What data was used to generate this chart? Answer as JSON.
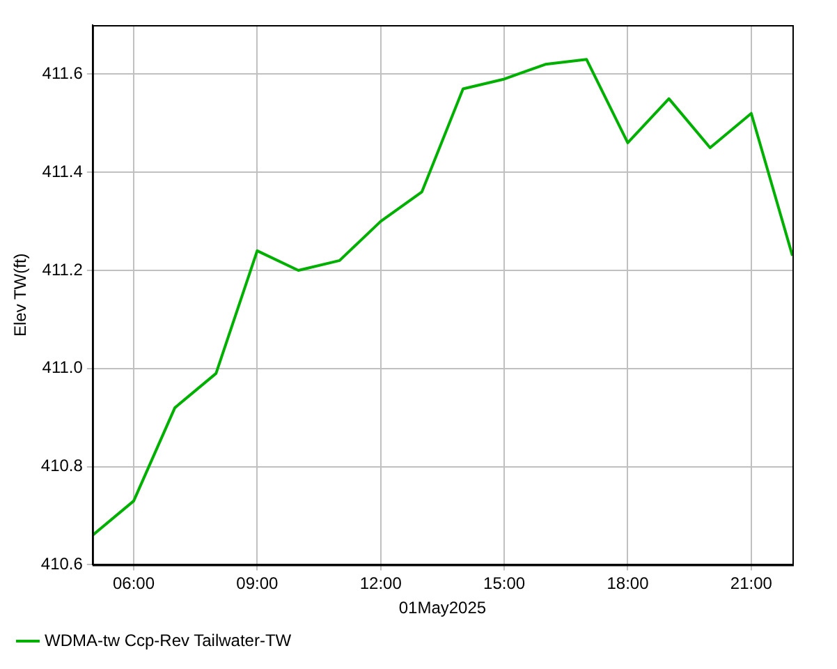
{
  "chart_data": {
    "type": "line",
    "xlabel": "01May2025",
    "ylabel": "Elev TW(ft)",
    "x": [
      5,
      6,
      7,
      8,
      9,
      10,
      11,
      12,
      13,
      14,
      15,
      16,
      17,
      18,
      19,
      20,
      21,
      22
    ],
    "series": [
      {
        "name": "WDMA-tw Ccp-Rev Tailwater-TW",
        "color": "#00b000",
        "values": [
          410.66,
          410.73,
          410.92,
          410.99,
          411.24,
          411.2,
          411.22,
          411.3,
          411.36,
          411.57,
          411.59,
          411.62,
          411.63,
          411.46,
          411.55,
          411.45,
          411.52,
          411.23
        ]
      }
    ],
    "xlim": [
      5,
      22
    ],
    "xticks": [
      {
        "value": 6,
        "label": "06:00"
      },
      {
        "value": 9,
        "label": "09:00"
      },
      {
        "value": 12,
        "label": "12:00"
      },
      {
        "value": 15,
        "label": "15:00"
      },
      {
        "value": 18,
        "label": "18:00"
      },
      {
        "value": 21,
        "label": "21:00"
      }
    ],
    "ylim": [
      410.6,
      411.7
    ],
    "yticks": [
      410.6,
      410.8,
      {
        "value": 411,
        "label": "411.0"
      },
      411.2,
      411.4,
      411.6
    ],
    "grid": true,
    "legend": "bottom left",
    "marker": "none",
    "line_style": "solid"
  }
}
